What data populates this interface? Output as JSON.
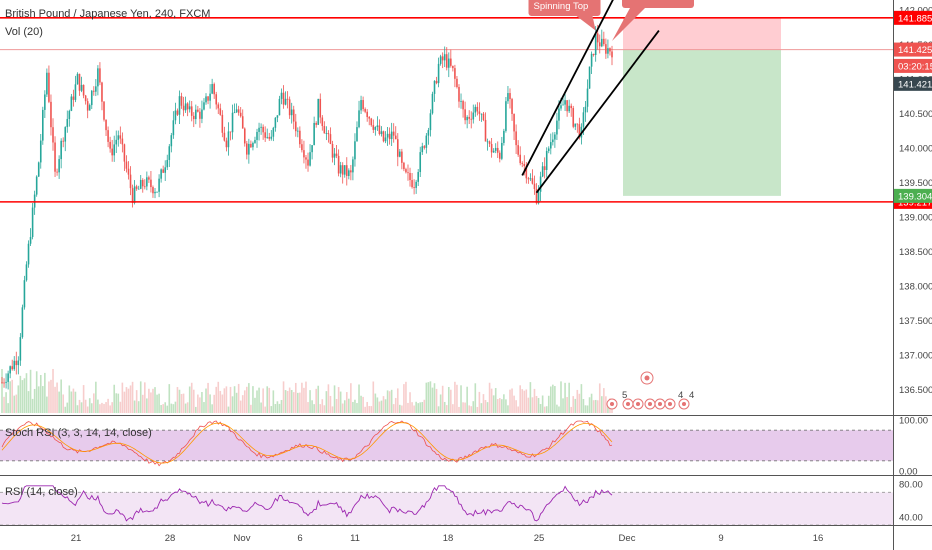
{
  "header": {
    "symbol": "British Pound / Japanese Yen, 240, FXCM",
    "vol_label": "Vol (20)"
  },
  "colors": {
    "up": "#26a69a",
    "down": "#ef5350",
    "level_line": "#ff0000",
    "stoch_fill": "#e1bee7",
    "rsi_fill": "#f3e5f5",
    "purple": "#9c27b0",
    "tp_zone": "#c8e6c9",
    "sl_zone": "#ffcdd2",
    "callout": "#e57373"
  },
  "chart_data": [
    {
      "type": "candlestick",
      "title": "British Pound / Japanese Yen, 240, FXCM",
      "x_labels": [
        "21",
        "28",
        "Nov",
        "6",
        "11",
        "18",
        "25",
        "Dec",
        "9",
        "16"
      ],
      "y_ticks": [
        "142.000",
        "141.500",
        "141.000",
        "140.500",
        "140.000",
        "139.500",
        "139.000",
        "138.500",
        "138.000",
        "137.500",
        "137.000",
        "136.500"
      ],
      "ylim": [
        136.2,
        142.1
      ],
      "horizontal_levels": [
        {
          "value": 141.885,
          "label": "141.885"
        },
        {
          "value": 139.217,
          "label": "139.217"
        }
      ],
      "price_tags": [
        {
          "value": 141.425,
          "label": "141.425",
          "style": "level"
        },
        {
          "value": 141.42,
          "label": "03:20:15",
          "style": "timer"
        },
        {
          "value": 141.421,
          "label": "141.421",
          "style": "dark"
        },
        {
          "value": 139.304,
          "label": "139.304",
          "style": "green"
        }
      ],
      "position": {
        "entry": 141.425,
        "stop": 141.885,
        "target": 139.304
      },
      "annotation": {
        "text": "Spinning Top"
      },
      "event_markers": [
        "5",
        "4",
        "4"
      ],
      "grid": false
    },
    {
      "type": "line",
      "title": "Stoch RSI (3, 3, 14, 14, close)",
      "y_ticks": [
        "100.00",
        "0.00"
      ],
      "ylim": [
        0,
        100
      ],
      "band": [
        20,
        80
      ]
    },
    {
      "type": "line",
      "title": "RSI (14, close)",
      "y_ticks": [
        "80.00",
        "40.00"
      ],
      "ylim": [
        30,
        90
      ],
      "band": [
        30,
        70
      ]
    }
  ]
}
